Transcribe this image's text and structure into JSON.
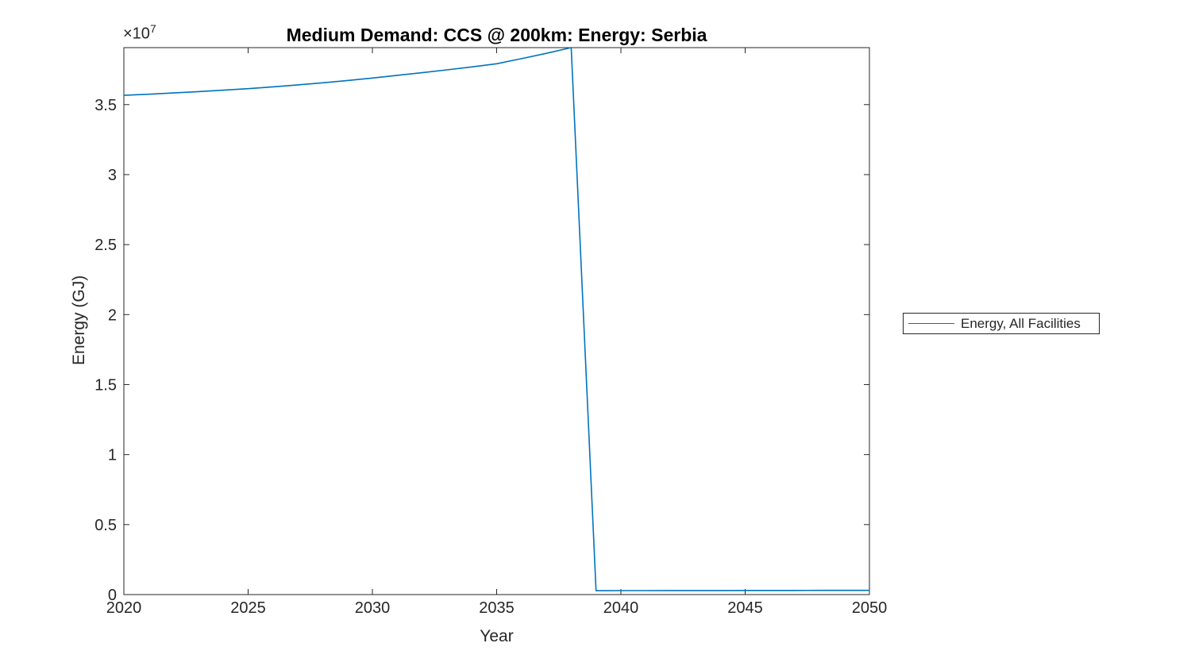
{
  "figure": {
    "title": "Medium Demand: CCS @ 200km: Energy: Serbia"
  },
  "axes": {
    "xlabel": "Year",
    "ylabel": "Energy (GJ)",
    "y_multiplier_base": "×10",
    "y_multiplier_exponent": "7",
    "x_tick_labels": [
      "2020",
      "2025",
      "2030",
      "2035",
      "2040",
      "2045",
      "2050"
    ],
    "y_tick_labels": [
      "0",
      "0.5",
      "1",
      "1.5",
      "2",
      "2.5",
      "3",
      "3.5"
    ]
  },
  "legend": {
    "entries": [
      {
        "label": "Energy, All Facilities",
        "color": "#0072BD"
      }
    ]
  },
  "colors": {
    "line": "#0072BD",
    "axis": "#262626",
    "background": "#ffffff"
  },
  "chart_data": {
    "type": "line",
    "title": "Medium Demand: CCS @ 200km: Energy: Serbia",
    "xlabel": "Year",
    "ylabel": "Energy (GJ)",
    "xlim": [
      2020,
      2050
    ],
    "ylim": [
      0,
      39070000
    ],
    "x_ticks": [
      2020,
      2025,
      2030,
      2035,
      2040,
      2045,
      2050
    ],
    "y_ticks": [
      0,
      5000000,
      10000000,
      15000000,
      20000000,
      25000000,
      30000000,
      35000000
    ],
    "y_axis_multiplier": 10000000,
    "grid": false,
    "legend_position": "right-outside",
    "series": [
      {
        "name": "Energy, All Facilities",
        "color": "#0072BD",
        "x": [
          2020,
          2021,
          2022,
          2023,
          2024,
          2025,
          2026,
          2027,
          2028,
          2029,
          2030,
          2031,
          2032,
          2033,
          2034,
          2035,
          2036,
          2037,
          2038,
          2039,
          2040,
          2041,
          2042,
          2043,
          2044,
          2045,
          2046,
          2047,
          2048,
          2049,
          2050
        ],
        "y": [
          35660000,
          35740000,
          35830000,
          35930000,
          36030000,
          36140000,
          36270000,
          36410000,
          36560000,
          36720000,
          36900000,
          37090000,
          37280000,
          37480000,
          37690000,
          37920000,
          38280000,
          38660000,
          39070000,
          280000,
          285000,
          285000,
          290000,
          290000,
          290000,
          295000,
          295000,
          295000,
          300000,
          300000,
          300000
        ]
      }
    ]
  }
}
